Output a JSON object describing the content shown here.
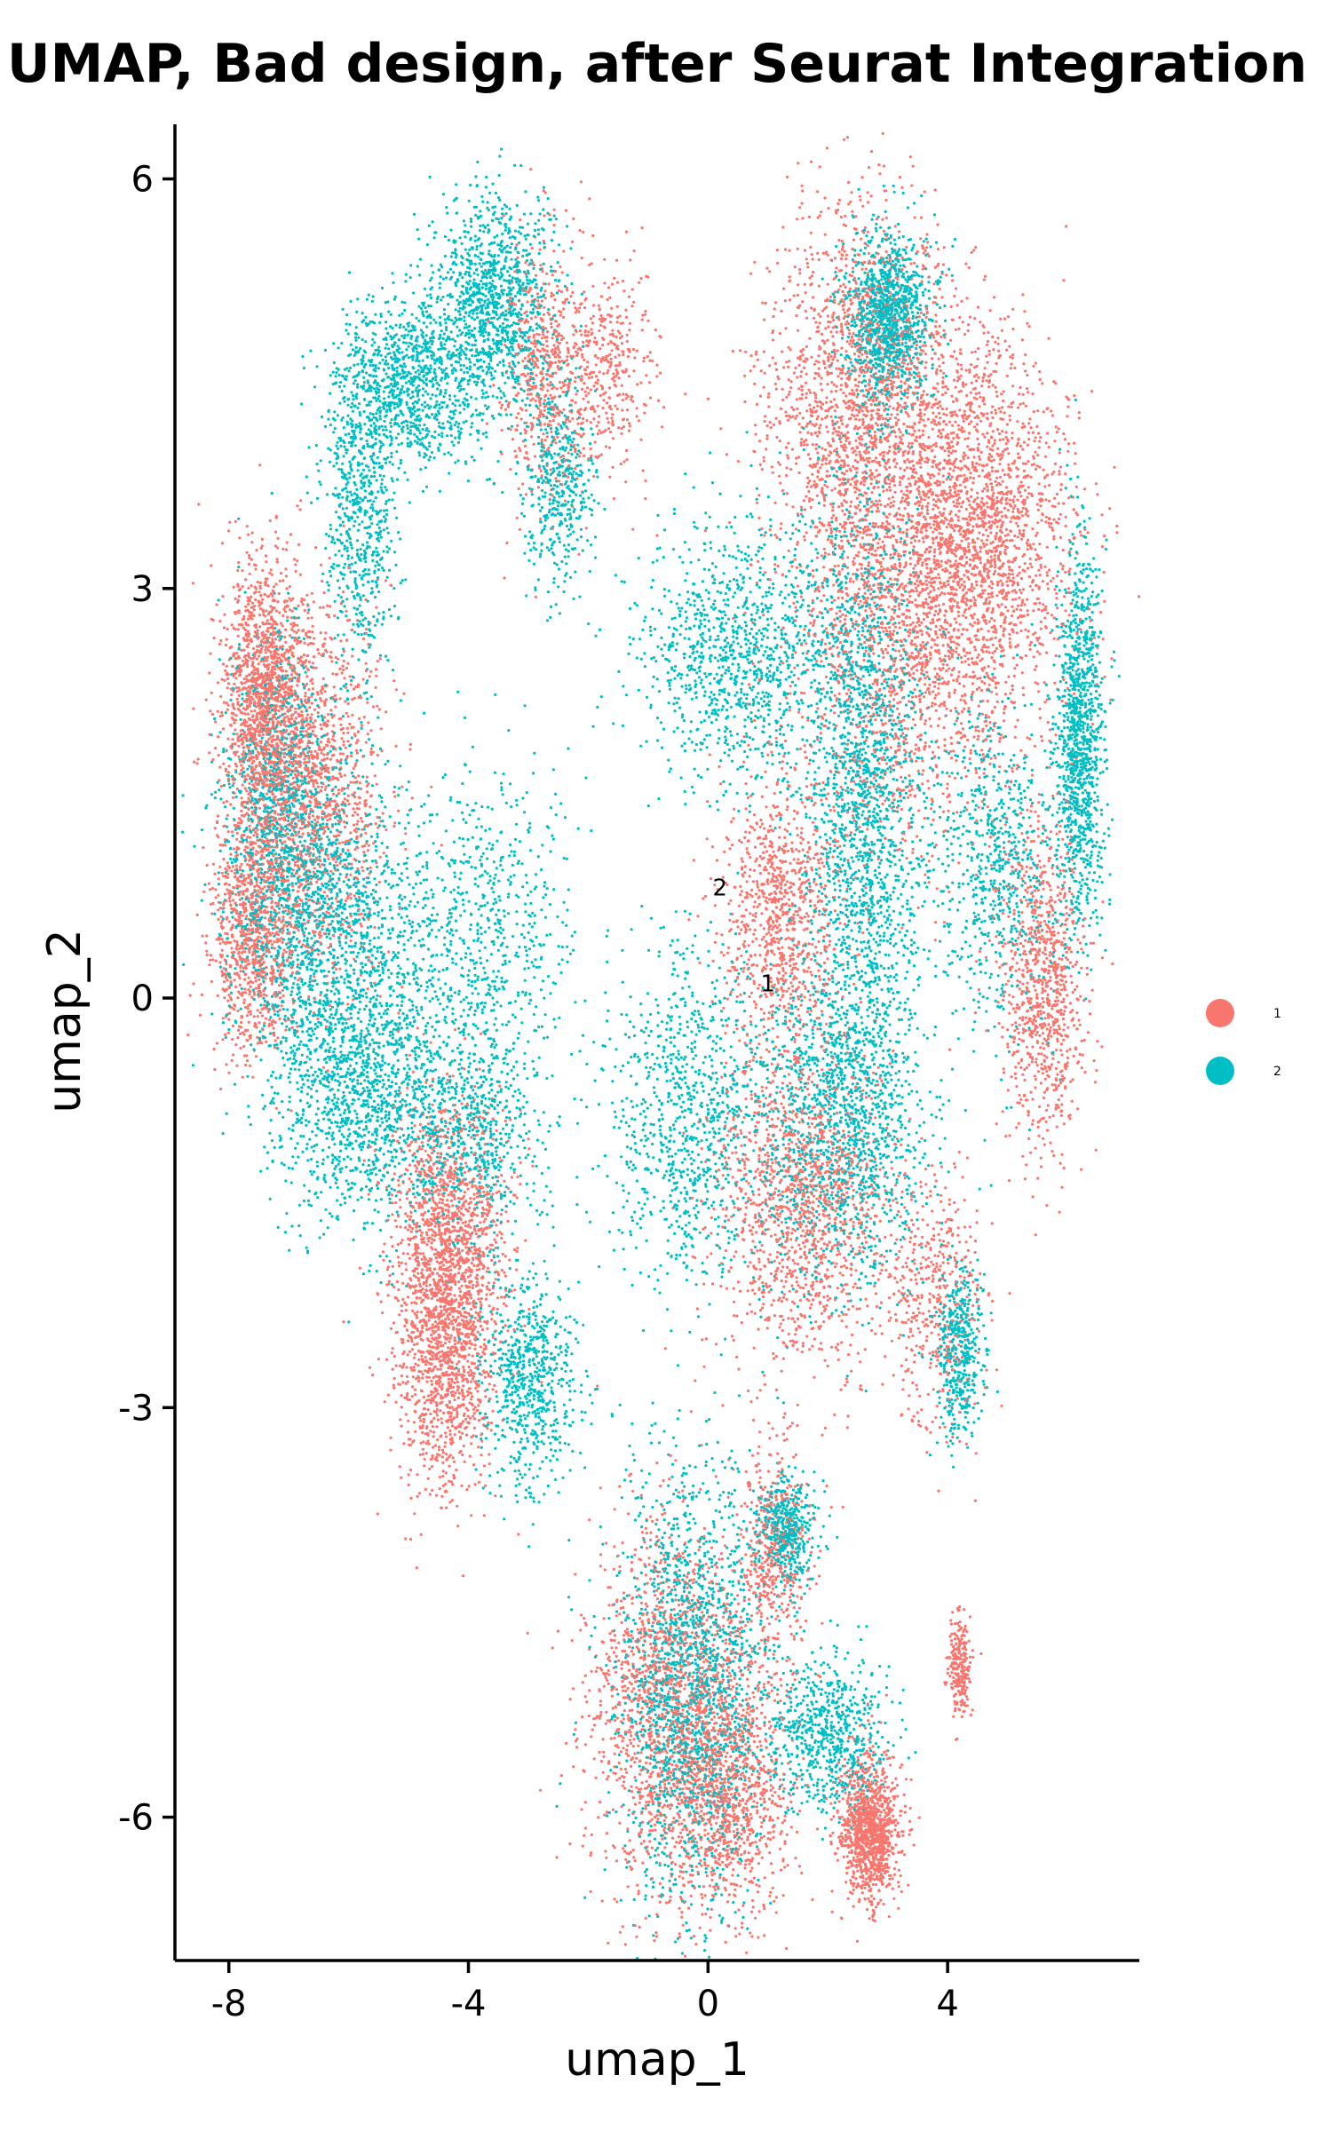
{
  "chart_data": {
    "type": "scatter",
    "title": "UMAP, Bad design, after Seurat Integration",
    "xlabel": "umap_1",
    "ylabel": "umap_2",
    "xlim": [
      -8.9,
      7.2
    ],
    "ylim": [
      -7.05,
      6.4
    ],
    "x_ticks": [
      -8,
      -4,
      0,
      4
    ],
    "y_ticks": [
      6,
      3,
      0,
      -3,
      -6
    ],
    "x_tick_labels": [
      "-8",
      "-4",
      "0",
      "4"
    ],
    "y_tick_labels": [
      "6",
      "3",
      "0",
      "-3",
      "-6"
    ],
    "legend_position": "right",
    "grid": false,
    "series": [
      {
        "name": "1",
        "color": "#F8766D",
        "clusters": [
          {
            "x": -7.4,
            "y": 2.2,
            "sx": 0.35,
            "sy": 0.5,
            "w": 6
          },
          {
            "x": -6.6,
            "y": 1.5,
            "sx": 0.6,
            "sy": 0.7,
            "w": 6
          },
          {
            "x": -7.6,
            "y": 0.5,
            "sx": 0.35,
            "sy": 0.45,
            "w": 4
          },
          {
            "x": -4.3,
            "y": -1.7,
            "sx": 0.5,
            "sy": 0.5,
            "w": 5
          },
          {
            "x": -4.4,
            "y": -2.6,
            "sx": 0.4,
            "sy": 0.5,
            "w": 5
          },
          {
            "x": -2.8,
            "y": 4.6,
            "sx": 0.3,
            "sy": 0.5,
            "w": 2
          },
          {
            "x": -1.8,
            "y": 4.6,
            "sx": 0.45,
            "sy": 0.4,
            "w": 2
          },
          {
            "x": 2.6,
            "y": 4.4,
            "sx": 0.8,
            "sy": 0.7,
            "w": 8
          },
          {
            "x": 4.6,
            "y": 3.4,
            "sx": 0.8,
            "sy": 0.7,
            "w": 8
          },
          {
            "x": 3.4,
            "y": 2.7,
            "sx": 1.0,
            "sy": 0.8,
            "w": 7
          },
          {
            "x": 1.2,
            "y": 0.6,
            "sx": 0.5,
            "sy": 0.5,
            "w": 4
          },
          {
            "x": 5.6,
            "y": 0.1,
            "sx": 0.35,
            "sy": 0.6,
            "w": 4
          },
          {
            "x": 1.6,
            "y": -1.5,
            "sx": 0.7,
            "sy": 0.6,
            "w": 6
          },
          {
            "x": -0.6,
            "y": -5.2,
            "sx": 0.7,
            "sy": 0.7,
            "w": 7
          },
          {
            "x": 0.4,
            "y": -5.8,
            "sx": 0.5,
            "sy": 0.45,
            "w": 4
          },
          {
            "x": 2.7,
            "y": -6.1,
            "sx": 0.25,
            "sy": 0.25,
            "w": 5
          },
          {
            "x": 4.2,
            "y": -4.9,
            "sx": 0.1,
            "sy": 0.2,
            "w": 1
          },
          {
            "x": 1.1,
            "y": -4.1,
            "sx": 0.3,
            "sy": 0.4,
            "w": 2
          },
          {
            "x": 3.8,
            "y": -2.2,
            "sx": 0.4,
            "sy": 0.5,
            "w": 2
          }
        ]
      },
      {
        "name": "2",
        "color": "#00BFC4",
        "clusters": [
          {
            "x": -3.6,
            "y": 5.1,
            "sx": 0.5,
            "sy": 0.4,
            "w": 5
          },
          {
            "x": -5.0,
            "y": 4.5,
            "sx": 0.6,
            "sy": 0.3,
            "w": 4
          },
          {
            "x": -5.8,
            "y": 3.6,
            "sx": 0.3,
            "sy": 0.6,
            "w": 3
          },
          {
            "x": -2.5,
            "y": 3.8,
            "sx": 0.3,
            "sy": 0.4,
            "w": 2
          },
          {
            "x": -7.1,
            "y": 1.3,
            "sx": 0.5,
            "sy": 0.7,
            "w": 5
          },
          {
            "x": -6.2,
            "y": 0.4,
            "sx": 0.8,
            "sy": 0.6,
            "w": 5
          },
          {
            "x": -5.8,
            "y": -0.7,
            "sx": 0.7,
            "sy": 0.5,
            "w": 5
          },
          {
            "x": -4.0,
            "y": -1.0,
            "sx": 0.6,
            "sy": 0.4,
            "w": 3
          },
          {
            "x": -3.0,
            "y": -2.8,
            "sx": 0.4,
            "sy": 0.4,
            "w": 3
          },
          {
            "x": -3.8,
            "y": 0.5,
            "sx": 0.8,
            "sy": 0.6,
            "w": 3
          },
          {
            "x": 3.0,
            "y": 5.0,
            "sx": 0.35,
            "sy": 0.3,
            "w": 5
          },
          {
            "x": 2.6,
            "y": 1.5,
            "sx": 0.5,
            "sy": 1.2,
            "w": 8
          },
          {
            "x": 0.6,
            "y": 2.5,
            "sx": 0.9,
            "sy": 0.5,
            "w": 5
          },
          {
            "x": 6.2,
            "y": 1.9,
            "sx": 0.2,
            "sy": 0.7,
            "w": 5
          },
          {
            "x": 2.2,
            "y": -0.9,
            "sx": 0.7,
            "sy": 0.6,
            "w": 6
          },
          {
            "x": -0.3,
            "y": -0.9,
            "sx": 0.7,
            "sy": 0.6,
            "w": 4
          },
          {
            "x": 4.2,
            "y": -2.6,
            "sx": 0.2,
            "sy": 0.3,
            "w": 2
          },
          {
            "x": -0.3,
            "y": -5.0,
            "sx": 0.6,
            "sy": 0.8,
            "w": 8
          },
          {
            "x": 1.3,
            "y": -3.9,
            "sx": 0.25,
            "sy": 0.2,
            "w": 2
          },
          {
            "x": 2.0,
            "y": -5.4,
            "sx": 0.5,
            "sy": 0.3,
            "w": 3
          },
          {
            "x": 4.8,
            "y": 1.0,
            "sx": 0.5,
            "sy": 0.6,
            "w": 3
          }
        ]
      }
    ],
    "cluster_labels": [
      {
        "text": "2",
        "x": 0.2,
        "y": 0.75
      },
      {
        "text": "1",
        "x": 1.0,
        "y": 0.05
      }
    ]
  }
}
